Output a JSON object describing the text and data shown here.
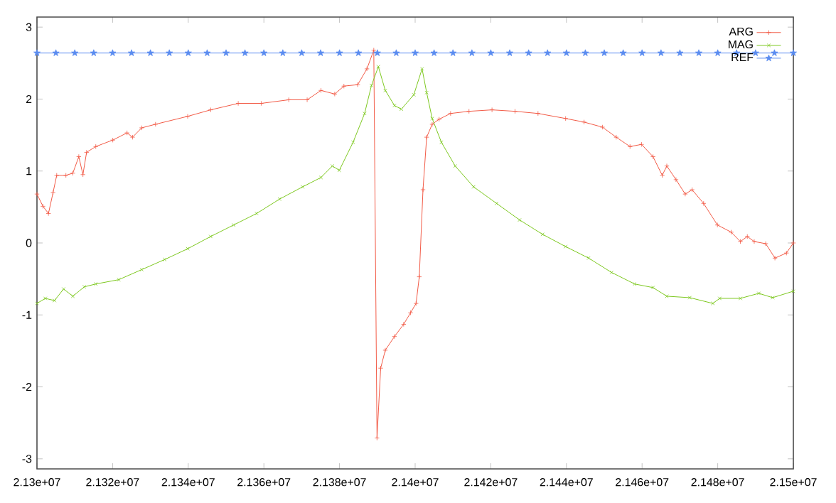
{
  "chart_data": {
    "type": "line",
    "xlim": [
      21300000,
      21500000
    ],
    "ylim": [
      -3.14,
      3.14
    ],
    "xticks": [
      {
        "value": 21300000,
        "label": "2.13e+07"
      },
      {
        "value": 21320000,
        "label": "2.132e+07"
      },
      {
        "value": 21340000,
        "label": "2.134e+07"
      },
      {
        "value": 21360000,
        "label": "2.136e+07"
      },
      {
        "value": 21380000,
        "label": "2.138e+07"
      },
      {
        "value": 21400000,
        "label": "2.14e+07"
      },
      {
        "value": 21420000,
        "label": "2.142e+07"
      },
      {
        "value": 21440000,
        "label": "2.144e+07"
      },
      {
        "value": 21460000,
        "label": "2.146e+07"
      },
      {
        "value": 21480000,
        "label": "2.148e+07"
      },
      {
        "value": 21500000,
        "label": "2.15e+07"
      }
    ],
    "yticks": [
      -3,
      -2,
      -1,
      0,
      1,
      2,
      3
    ],
    "legend": "top right",
    "series": [
      {
        "name": "ARG",
        "color": "#f25a46",
        "marker": "plus",
        "x": [
          21300000,
          21301580,
          21303040,
          21304250,
          21305220,
          21307650,
          21309480,
          21311060,
          21312150,
          21313120,
          21315550,
          21320050,
          21323810,
          21325270,
          21327700,
          21331350,
          21339850,
          21345930,
          21353220,
          21359290,
          21366580,
          21371440,
          21375090,
          21378730,
          21381160,
          21384810,
          21387240,
          21389060,
          21389910,
          21390880,
          21392100,
          21394530,
          21396960,
          21398780,
          21400240,
          21401090,
          21402070,
          21403040,
          21404500,
          21406330,
          21409370,
          21414230,
          21420320,
          21426400,
          21432480,
          21439780,
          21444650,
          21449510,
          21453160,
          21456810,
          21459850,
          21462890,
          21465330,
          21466540,
          21468970,
          21471400,
          21473230,
          21476270,
          21479920,
          21483570,
          21486000,
          21487830,
          21489650,
          21492690,
          21495130,
          21498170,
          21500000
        ],
        "values": [
          0.68,
          0.51,
          0.41,
          0.7,
          0.94,
          0.94,
          0.97,
          1.2,
          0.95,
          1.26,
          1.34,
          1.43,
          1.53,
          1.47,
          1.6,
          1.65,
          1.76,
          1.85,
          1.94,
          1.94,
          1.99,
          1.99,
          2.12,
          2.07,
          2.18,
          2.2,
          2.42,
          2.68,
          -2.71,
          -1.74,
          -1.49,
          -1.3,
          -1.13,
          -0.97,
          -0.84,
          -0.47,
          0.74,
          1.47,
          1.65,
          1.72,
          1.8,
          1.83,
          1.85,
          1.83,
          1.8,
          1.73,
          1.68,
          1.61,
          1.47,
          1.34,
          1.37,
          1.2,
          0.94,
          1.07,
          0.88,
          0.68,
          0.74,
          0.55,
          0.25,
          0.15,
          0.02,
          0.09,
          0.02,
          -0.01,
          -0.21,
          -0.14,
          0
        ]
      },
      {
        "name": "MAG",
        "color": "#7cc81e",
        "marker": "cross",
        "x": [
          21300000,
          21302190,
          21304620,
          21307050,
          21309480,
          21312510,
          21315550,
          21321630,
          21327700,
          21333780,
          21339850,
          21345930,
          21352000,
          21358080,
          21364150,
          21370230,
          21375090,
          21378120,
          21379950,
          21383590,
          21386630,
          21388450,
          21390270,
          21392100,
          21394530,
          21396350,
          21399640,
          21401830,
          21403040,
          21404500,
          21406930,
          21410580,
          21415450,
          21421530,
          21427610,
          21433700,
          21439780,
          21445860,
          21451940,
          21458030,
          21462890,
          21466540,
          21472620,
          21478710,
          21480530,
          21486000,
          21490870,
          21494520,
          21500000
        ],
        "values": [
          -0.84,
          -0.77,
          -0.8,
          -0.64,
          -0.74,
          -0.61,
          -0.57,
          -0.51,
          -0.37,
          -0.23,
          -0.08,
          0.09,
          0.25,
          0.41,
          0.61,
          0.78,
          0.91,
          1.07,
          1.01,
          1.4,
          1.8,
          2.19,
          2.45,
          2.12,
          1.91,
          1.86,
          2.06,
          2.42,
          2.09,
          1.73,
          1.4,
          1.07,
          0.78,
          0.55,
          0.32,
          0.12,
          -0.05,
          -0.21,
          -0.41,
          -0.57,
          -0.62,
          -0.74,
          -0.76,
          -0.84,
          -0.77,
          -0.77,
          -0.7,
          -0.76,
          -0.67
        ]
      },
      {
        "name": "REF",
        "color": "#5a8cf0",
        "marker": "star",
        "x": [
          21300000,
          21305000,
          21310000,
          21315000,
          21320000,
          21325000,
          21330000,
          21335000,
          21340000,
          21345000,
          21350000,
          21355000,
          21360000,
          21365000,
          21370000,
          21375000,
          21380000,
          21385000,
          21390000,
          21395000,
          21400000,
          21405000,
          21410000,
          21415000,
          21420000,
          21425000,
          21430000,
          21435000,
          21440000,
          21445000,
          21450000,
          21455000,
          21460000,
          21465000,
          21470000,
          21475000,
          21480000,
          21485000,
          21490000,
          21495000,
          21500000
        ],
        "values": [
          2.64,
          2.64,
          2.64,
          2.64,
          2.64,
          2.64,
          2.64,
          2.64,
          2.64,
          2.64,
          2.64,
          2.64,
          2.64,
          2.64,
          2.64,
          2.64,
          2.64,
          2.64,
          2.64,
          2.64,
          2.64,
          2.64,
          2.64,
          2.64,
          2.64,
          2.64,
          2.64,
          2.64,
          2.64,
          2.64,
          2.64,
          2.64,
          2.64,
          2.64,
          2.64,
          2.64,
          2.64,
          2.64,
          2.64,
          2.64,
          2.64
        ]
      }
    ]
  }
}
